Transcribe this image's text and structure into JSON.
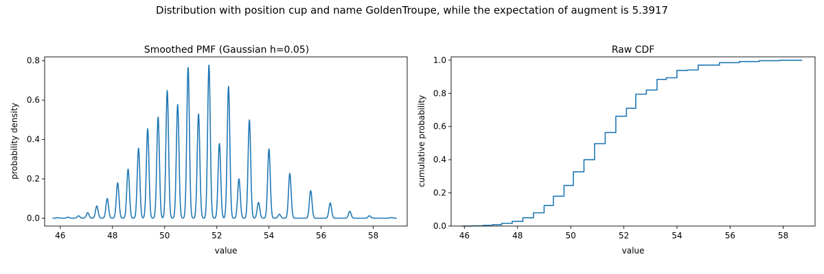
{
  "figure": {
    "suptitle": "Distribution with position cup and name GoldenTroupe, while the expectation of augment is 5.3917"
  },
  "colors": {
    "line": "#1f77b4"
  },
  "chart_data": [
    {
      "type": "line",
      "title": "Smoothed PMF (Gaussian h=0.05)",
      "xlabel": "value",
      "ylabel": "probability density",
      "xlim": [
        45.4,
        59.3
      ],
      "ylim": [
        -0.04,
        0.82
      ],
      "xticks": [
        46,
        48,
        50,
        52,
        54,
        56,
        58
      ],
      "xtick_labels": [
        "46",
        "48",
        "50",
        "52",
        "54",
        "56",
        "58"
      ],
      "yticks": [
        0.0,
        0.2,
        0.4,
        0.6,
        0.8
      ],
      "ytick_labels": [
        "0.0",
        "0.2",
        "0.4",
        "0.6",
        "0.8"
      ],
      "grid": false,
      "kernel_bandwidth": 0.05,
      "x_range": [
        45.7,
        58.9
      ],
      "peaks": {
        "x": [
          45.9,
          46.3,
          46.7,
          47.05,
          47.4,
          47.8,
          48.2,
          48.6,
          49.0,
          49.35,
          49.75,
          50.1,
          50.5,
          50.9,
          51.3,
          51.7,
          52.1,
          52.45,
          52.85,
          53.25,
          53.6,
          54.0,
          54.4,
          54.8,
          55.6,
          56.35,
          57.1,
          57.85,
          58.7
        ],
        "y": [
          0.003,
          0.005,
          0.012,
          0.028,
          0.062,
          0.1,
          0.18,
          0.25,
          0.355,
          0.455,
          0.515,
          0.65,
          0.578,
          0.768,
          0.53,
          0.78,
          0.38,
          0.67,
          0.2,
          0.5,
          0.08,
          0.352,
          0.02,
          0.228,
          0.14,
          0.078,
          0.035,
          0.012,
          0.003
        ]
      }
    },
    {
      "type": "line",
      "step": "post",
      "title": "Raw CDF",
      "xlabel": "value",
      "ylabel": "cumulative probability",
      "xlim": [
        45.5,
        59.2
      ],
      "ylim": [
        0.0,
        1.02
      ],
      "xticks": [
        46,
        48,
        50,
        52,
        54,
        56,
        58
      ],
      "xtick_labels": [
        "46",
        "48",
        "50",
        "52",
        "54",
        "56",
        "58"
      ],
      "yticks": [
        0.0,
        0.2,
        0.4,
        0.6,
        0.8,
        1.0
      ],
      "ytick_labels": [
        "0.0",
        "0.2",
        "0.4",
        "0.6",
        "0.8",
        "1.0"
      ],
      "grid": false,
      "x": [
        45.9,
        46.3,
        46.7,
        47.05,
        47.4,
        47.8,
        48.2,
        48.6,
        49.0,
        49.35,
        49.75,
        50.1,
        50.5,
        50.9,
        51.3,
        51.7,
        52.1,
        52.45,
        52.85,
        53.25,
        53.6,
        54.0,
        54.4,
        54.8,
        55.6,
        56.35,
        57.1,
        57.85,
        58.7
      ],
      "y": [
        0.0,
        0.001,
        0.004,
        0.008,
        0.016,
        0.028,
        0.05,
        0.08,
        0.124,
        0.18,
        0.245,
        0.327,
        0.4,
        0.497,
        0.564,
        0.662,
        0.71,
        0.795,
        0.82,
        0.884,
        0.894,
        0.938,
        0.941,
        0.97,
        0.985,
        0.992,
        0.997,
        0.999,
        1.0
      ],
      "x_end": 58.7
    }
  ]
}
